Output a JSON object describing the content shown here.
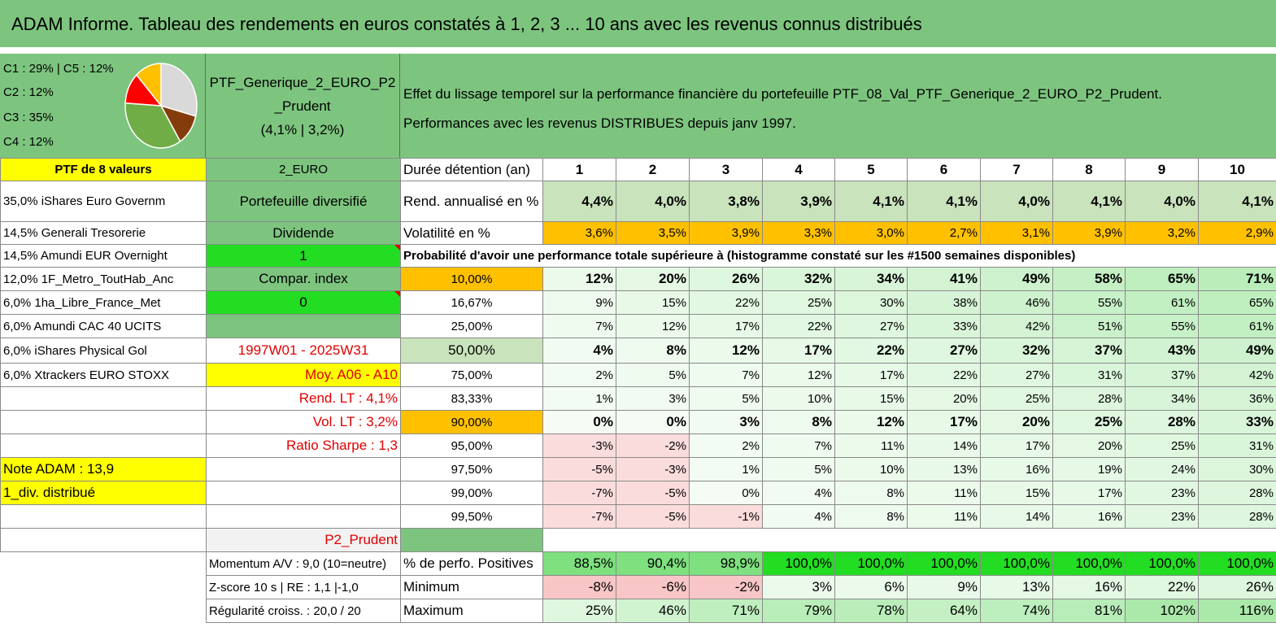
{
  "title": "ADAM Informe. Tableau des rendements en euros constatés à 1, 2, 3 ... 10 ans avec les revenus connus distribués",
  "allocation": {
    "lines": [
      "C1 : 29% | C5 : 12%",
      "C2 : 12%",
      "C3 : 35%",
      "C4 : 12%"
    ],
    "pie": [
      {
        "label": "C1",
        "pct": 29,
        "color": "#d9d9d9"
      },
      {
        "label": "C2",
        "pct": 12,
        "color": "#843c0c"
      },
      {
        "label": "C3",
        "pct": 35,
        "color": "#70ad47"
      },
      {
        "label": "C4",
        "pct": 12,
        "color": "#ff0000"
      },
      {
        "label": "C5",
        "pct": 12,
        "color": "#ffc000"
      }
    ]
  },
  "portfolio": {
    "name_line1": "PTF_Generique_2_EURO_P2",
    "name_line2": "_Prudent",
    "name_line3": "(4,1% | 3,2%)"
  },
  "description": {
    "line1": "Effet du lissage temporel sur la performance financière du portefeuille PTF_08_Val_PTF_Generique_2_EURO_P2_Prudent.",
    "line2": "Performances avec les revenus DISTRIBUES depuis janv 1997."
  },
  "header_row": {
    "col_a": "PTF de 8 valeurs",
    "col_b": "2_EURO",
    "col_c": "Durée détention (an)",
    "years": [
      "1",
      "2",
      "3",
      "4",
      "5",
      "6",
      "7",
      "8",
      "9",
      "10"
    ]
  },
  "rend_row": {
    "col_a": "35,0% iShares Euro Governm",
    "col_b": "Portefeuille diversifié",
    "col_c": "Rend. annualisé en %",
    "values": [
      "4,4%",
      "4,0%",
      "3,8%",
      "3,9%",
      "4,1%",
      "4,1%",
      "4,0%",
      "4,1%",
      "4,0%",
      "4,1%"
    ]
  },
  "vol_row": {
    "col_a": "14,5% Generali Tresorerie",
    "col_b": "Dividende",
    "col_c": "Volatilité en %",
    "values": [
      "3,6%",
      "3,5%",
      "3,9%",
      "3,3%",
      "3,0%",
      "2,7%",
      "3,1%",
      "3,9%",
      "3,2%",
      "2,9%"
    ]
  },
  "prob_row": {
    "col_a": "14,5% Amundi EUR Overnight",
    "col_b": "1",
    "caption": "Probabilité d'avoir une performance totale supérieure à (histogramme constaté sur les #1500 semaines disponibles)"
  },
  "left_labels": [
    {
      "a": "12,0% 1F_Metro_ToutHab_Anc",
      "b": "Compar. index"
    },
    {
      "a": "6,0% 1ha_Libre_France_Met",
      "b": "0"
    },
    {
      "a": "6,0% Amundi CAC 40 UCITS",
      "b": ""
    },
    {
      "a": "6,0% iShares Physical Gol",
      "b": "1997W01 - 2025W31"
    },
    {
      "a": "6,0% Xtrackers EURO STOXX",
      "b": "Moy. A06 - A10"
    },
    {
      "a": "",
      "b": "Rend. LT : 4,1%"
    },
    {
      "a": "",
      "b": "Vol. LT : 3,2%"
    },
    {
      "a": "",
      "b": "Ratio Sharpe : 1,3"
    },
    {
      "a": "Note ADAM : 13,9",
      "b": ""
    },
    {
      "a": "1_div. distribué",
      "b": ""
    }
  ],
  "prob_table": [
    {
      "threshold": "10,00%",
      "values": [
        "12%",
        "20%",
        "26%",
        "32%",
        "34%",
        "41%",
        "49%",
        "58%",
        "65%",
        "71%"
      ]
    },
    {
      "threshold": "16,67%",
      "values": [
        "9%",
        "15%",
        "22%",
        "25%",
        "30%",
        "38%",
        "46%",
        "55%",
        "61%",
        "65%"
      ]
    },
    {
      "threshold": "25,00%",
      "values": [
        "7%",
        "12%",
        "17%",
        "22%",
        "27%",
        "33%",
        "42%",
        "51%",
        "55%",
        "61%"
      ]
    },
    {
      "threshold": "50,00%",
      "values": [
        "4%",
        "8%",
        "12%",
        "17%",
        "22%",
        "27%",
        "32%",
        "37%",
        "43%",
        "49%"
      ]
    },
    {
      "threshold": "75,00%",
      "values": [
        "2%",
        "5%",
        "7%",
        "12%",
        "17%",
        "22%",
        "27%",
        "31%",
        "37%",
        "42%"
      ]
    },
    {
      "threshold": "83,33%",
      "values": [
        "1%",
        "3%",
        "5%",
        "10%",
        "15%",
        "20%",
        "25%",
        "28%",
        "34%",
        "36%"
      ]
    },
    {
      "threshold": "90,00%",
      "values": [
        "0%",
        "0%",
        "3%",
        "8%",
        "12%",
        "17%",
        "20%",
        "25%",
        "28%",
        "33%"
      ]
    },
    {
      "threshold": "95,00%",
      "values": [
        "-3%",
        "-2%",
        "2%",
        "7%",
        "11%",
        "14%",
        "17%",
        "20%",
        "25%",
        "31%"
      ]
    },
    {
      "threshold": "97,50%",
      "values": [
        "-5%",
        "-3%",
        "1%",
        "5%",
        "10%",
        "13%",
        "16%",
        "19%",
        "24%",
        "30%"
      ]
    },
    {
      "threshold": "99,00%",
      "values": [
        "-7%",
        "-5%",
        "0%",
        "4%",
        "8%",
        "11%",
        "15%",
        "17%",
        "23%",
        "28%"
      ]
    },
    {
      "threshold": "99,50%",
      "values": [
        "-7%",
        "-5%",
        "-1%",
        "4%",
        "8%",
        "11%",
        "14%",
        "16%",
        "23%",
        "28%"
      ]
    }
  ],
  "profile_label": "P2_Prudent",
  "bottom_rows": [
    {
      "left": "Momentum A/V : 9,0 (10=neutre)",
      "label": "% de perfo. Positives",
      "values": [
        "88,5%",
        "90,4%",
        "98,9%",
        "100,0%",
        "100,0%",
        "100,0%",
        "100,0%",
        "100,0%",
        "100,0%",
        "100,0%"
      ]
    },
    {
      "left": "Z-score 10 s | RE : 1,1 |-1,0",
      "label": "Minimum",
      "values": [
        "-8%",
        "-6%",
        "-2%",
        "3%",
        "6%",
        "9%",
        "13%",
        "16%",
        "22%",
        "26%"
      ]
    },
    {
      "left": "Régularité croiss. : 20,0 / 20",
      "label": "Maximum",
      "values": [
        "25%",
        "46%",
        "71%",
        "79%",
        "78%",
        "64%",
        "74%",
        "81%",
        "102%",
        "116%"
      ]
    }
  ],
  "colors": {
    "header_green": "#7dc57f",
    "yellow": "#ffff00",
    "orange": "#ffc000",
    "bright_green": "#22dd22",
    "red_text": "#e00000"
  }
}
